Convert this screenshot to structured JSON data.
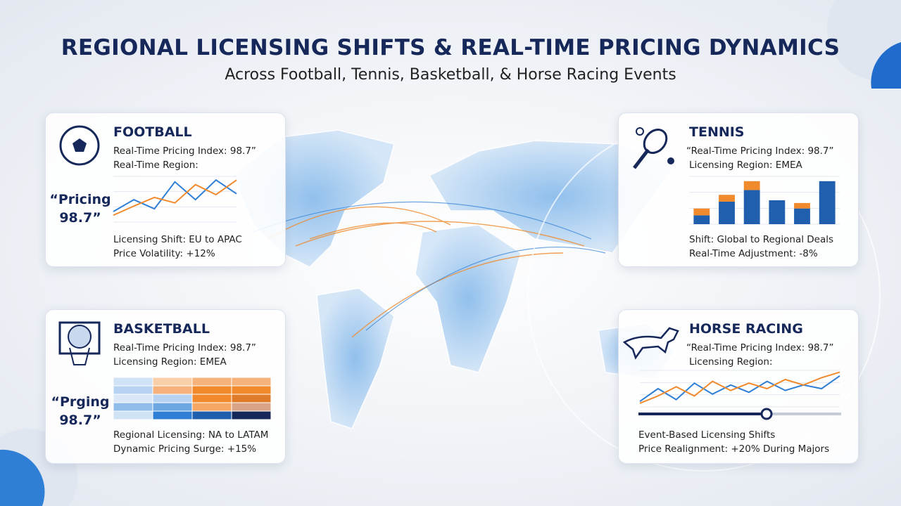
{
  "header": {
    "title": "REGIONAL LICENSING SHIFTS & REAL-TIME PRICING DYNAMICS",
    "subtitle": "Across Football, Tennis, Basketball, & Horse Racing Events"
  },
  "cards": [
    {
      "title": "FOOTBALL",
      "lines": [
        "Real-Time Pricing Index: 98.7”",
        "Real-Time Region:"
      ],
      "badge": [
        "“Pricing",
        "98.7”"
      ],
      "notes": [
        "Licensing Shift: EU to APAC",
        "Price Volatility: +12%"
      ],
      "chart": {
        "type": "line",
        "ylim": [
          0,
          10
        ],
        "series": [
          {
            "color": "#2f7fd6",
            "values": [
              2.3,
              4.9,
              2.9,
              8.8,
              4.9,
              9.2,
              6.2
            ]
          },
          {
            "color": "#f08a2c",
            "values": [
              1.5,
              3.5,
              5.4,
              4.2,
              8.2,
              6.0,
              9.2
            ]
          }
        ]
      }
    },
    {
      "title": "TENNIS",
      "lines": [
        "“Real-Time Pricing Index: 98.7”",
        "Licensing Region: EMEA"
      ],
      "notes": [
        "Shift: Global to Regional Deals",
        "Real-Time Adjustment: -8%"
      ],
      "chart": {
        "type": "bar",
        "ylim": [
          0,
          70
        ],
        "series": [
          {
            "color": "#1f5fae",
            "values": [
              13,
              33,
              50,
              35,
              23,
              63
            ]
          },
          {
            "color": "#f08a2c",
            "values": [
              10,
              10,
              13,
              0,
              8,
              0
            ]
          }
        ]
      }
    },
    {
      "title": "BASKETBALL",
      "lines": [
        "Real-Time Pricing Index: 98.7”",
        "Licensing Region: EMEA"
      ],
      "badge": [
        "“Prging",
        "98.7”"
      ],
      "notes": [
        "Regional Licensing: NA to LATAM",
        "Dynamic Pricing Surge: +15%"
      ]
    },
    {
      "title": "HORSE RACING",
      "lines": [
        "“Real-Time Pricing Index: 98.7”",
        "Licensing Region:"
      ],
      "notes": [
        "Event-Based Licensing Shifts",
        "Price Realignment: +20% During Majors"
      ],
      "chart": {
        "type": "line",
        "ylim": [
          0,
          10
        ],
        "series": [
          {
            "color": "#2f7fd6",
            "values": [
              1.5,
              5,
              2,
              6.5,
              3.5,
              6,
              4,
              7,
              4.5,
              6,
              5,
              8.5
            ]
          },
          {
            "color": "#f08a2c",
            "values": [
              1,
              3,
              5.5,
              3,
              7,
              4.5,
              6.5,
              5,
              7.5,
              6,
              8,
              9.5
            ]
          }
        ]
      }
    }
  ]
}
